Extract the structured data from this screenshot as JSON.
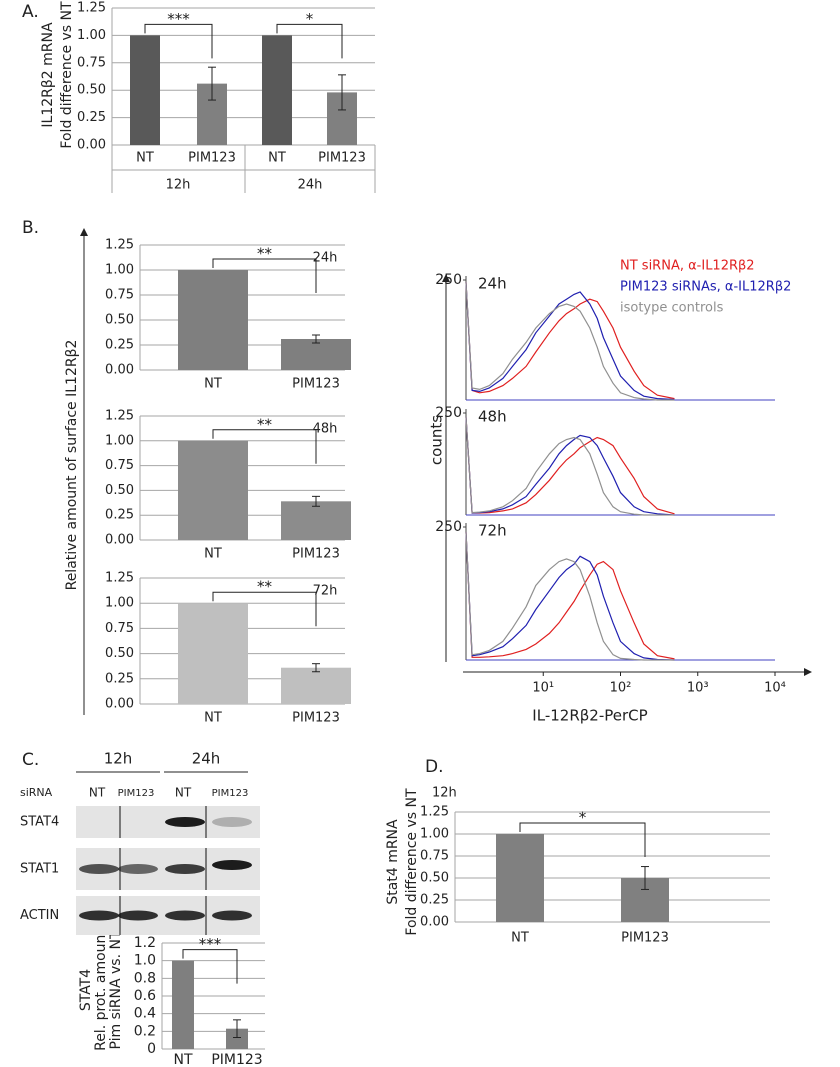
{
  "panel_labels": [
    "A.",
    "B.",
    "C.",
    "D."
  ],
  "blot": {
    "timepoints": [
      "12h",
      "24h"
    ],
    "row_label": "siRNA",
    "lanes": [
      "NT",
      "PIM123",
      "NT",
      "PIM123"
    ],
    "proteins": [
      "STAT4",
      "STAT1",
      "ACTIN"
    ]
  },
  "chart_data": [
    {
      "type": "bar",
      "ylabel": [
        "IL12Rβ2 mRNA",
        "Fold difference vs NT"
      ],
      "categories": [
        "NT",
        "PIM123",
        "NT",
        "PIM123"
      ],
      "groups": [
        "12h",
        "24h"
      ],
      "values": [
        1.0,
        0.56,
        1.0,
        0.48
      ],
      "errors": [
        null,
        0.15,
        null,
        0.16
      ],
      "colors": [
        "#595959",
        "#808080",
        "#595959",
        "#808080"
      ],
      "ylim": [
        0,
        1.25
      ],
      "yticks": [
        {
          "value": 0,
          "label": "0.00"
        },
        {
          "value": 0.25,
          "label": "0.25"
        },
        {
          "value": 0.5,
          "label": "0.50"
        },
        {
          "value": 0.75,
          "label": "0.75"
        },
        {
          "value": 1,
          "label": "1.00"
        },
        {
          "value": 1.25,
          "label": "1.25"
        }
      ],
      "grid": true,
      "significance": [
        "***",
        "*"
      ]
    },
    {
      "type": "bar",
      "title": "24h",
      "ylabel": [
        "Relative amount of surface IL12Rβ2"
      ],
      "categories": [
        "NT",
        "PIM123"
      ],
      "values": [
        1.0,
        0.31
      ],
      "errors": [
        null,
        0.04
      ],
      "colors": [
        "#7f7f7f",
        "#7f7f7f"
      ],
      "ylim": [
        0,
        1.25
      ],
      "yticks": [
        {
          "value": 0,
          "label": "0.00"
        },
        {
          "value": 0.25,
          "label": "0.25"
        },
        {
          "value": 0.5,
          "label": "0.50"
        },
        {
          "value": 0.75,
          "label": "0.75"
        },
        {
          "value": 1,
          "label": "1.00"
        },
        {
          "value": 1.25,
          "label": "1.25"
        }
      ],
      "grid": true,
      "significance": [
        "**"
      ]
    },
    {
      "type": "bar",
      "title": "48h",
      "categories": [
        "NT",
        "PIM123"
      ],
      "values": [
        1.0,
        0.39
      ],
      "errors": [
        null,
        0.05
      ],
      "colors": [
        "#8c8c8c",
        "#8c8c8c"
      ],
      "ylim": [
        0,
        1.25
      ],
      "yticks": [
        {
          "value": 0,
          "label": "0.00"
        },
        {
          "value": 0.25,
          "label": "0.25"
        },
        {
          "value": 0.5,
          "label": "0.50"
        },
        {
          "value": 0.75,
          "label": "0.75"
        },
        {
          "value": 1,
          "label": "1.00"
        },
        {
          "value": 1.25,
          "label": "1.25"
        }
      ],
      "grid": true,
      "significance": [
        "**"
      ]
    },
    {
      "type": "bar",
      "title": "72h",
      "categories": [
        "NT",
        "PIM123"
      ],
      "values": [
        1.0,
        0.36
      ],
      "errors": [
        null,
        0.04
      ],
      "colors": [
        "#bfbfbf",
        "#bfbfbf"
      ],
      "ylim": [
        0,
        1.25
      ],
      "yticks": [
        {
          "value": 0,
          "label": "0.00"
        },
        {
          "value": 0.25,
          "label": "0.25"
        },
        {
          "value": 0.5,
          "label": "0.50"
        },
        {
          "value": 0.75,
          "label": "0.75"
        },
        {
          "value": 1,
          "label": "1.00"
        },
        {
          "value": 1.25,
          "label": "1.25"
        }
      ],
      "grid": true,
      "significance": [
        "**"
      ]
    },
    {
      "type": "line",
      "title": "24h",
      "log_x": true,
      "x": [
        1,
        1.2,
        1.5,
        2,
        3,
        4,
        6,
        8,
        12,
        16,
        20,
        25,
        30,
        40,
        50,
        60,
        80,
        100,
        150,
        200,
        300,
        500
      ],
      "xlim": [
        1,
        10000
      ],
      "ylim": [
        0,
        250
      ],
      "yticks": [
        250
      ],
      "series": [
        {
          "name": "NT siRNA, α-IL12Rβ2",
          "color": "#e02020",
          "values": [
            245,
            20,
            15,
            18,
            30,
            45,
            70,
            100,
            140,
            165,
            180,
            190,
            200,
            210,
            205,
            185,
            150,
            110,
            60,
            30,
            10,
            3
          ]
        },
        {
          "name": "PIM123 siRNAs, α-IL12Rβ2",
          "color": "#2020b0",
          "values": [
            245,
            20,
            18,
            25,
            45,
            70,
            105,
            140,
            175,
            200,
            210,
            220,
            225,
            200,
            170,
            130,
            85,
            50,
            20,
            8,
            3,
            1
          ]
        },
        {
          "name": "isotype controls",
          "color": "#909090",
          "values": [
            245,
            25,
            22,
            30,
            55,
            85,
            120,
            150,
            180,
            195,
            200,
            195,
            185,
            150,
            110,
            70,
            35,
            15,
            5,
            2,
            0,
            0
          ]
        }
      ]
    },
    {
      "type": "line",
      "title": "48h",
      "ylabel": "counts",
      "log_x": true,
      "x": [
        1,
        1.2,
        1.5,
        2,
        3,
        4,
        6,
        8,
        12,
        16,
        20,
        25,
        30,
        40,
        50,
        60,
        80,
        100,
        150,
        200,
        300,
        500
      ],
      "xlim": [
        1,
        10000
      ],
      "ylim": [
        0,
        250
      ],
      "yticks": [
        250
      ],
      "series": [
        {
          "color": "#e02020",
          "values": [
            240,
            5,
            5,
            6,
            10,
            15,
            30,
            50,
            85,
            115,
            135,
            150,
            165,
            180,
            190,
            185,
            170,
            140,
            90,
            45,
            15,
            3
          ]
        },
        {
          "color": "#2020b0",
          "values": [
            240,
            5,
            6,
            8,
            15,
            25,
            45,
            75,
            115,
            150,
            170,
            185,
            195,
            190,
            170,
            140,
            95,
            55,
            20,
            8,
            3,
            0
          ]
        },
        {
          "color": "#909090",
          "values": [
            240,
            6,
            7,
            10,
            20,
            35,
            65,
            105,
            150,
            175,
            185,
            190,
            185,
            150,
            100,
            55,
            20,
            8,
            2,
            0,
            0,
            0
          ]
        }
      ]
    },
    {
      "type": "line",
      "title": "72h",
      "xlabel": "IL-12Rβ2-PerCP",
      "log_x": true,
      "x": [
        1,
        1.2,
        1.5,
        2,
        3,
        4,
        6,
        8,
        12,
        16,
        20,
        25,
        30,
        40,
        50,
        60,
        80,
        100,
        150,
        200,
        300,
        500
      ],
      "xlim": [
        1,
        10000
      ],
      "xticks": [
        {
          "value": 10,
          "label": "10¹"
        },
        {
          "value": 100,
          "label": "10²"
        },
        {
          "value": 1000,
          "label": "10³"
        },
        {
          "value": 10000,
          "label": "10⁴"
        }
      ],
      "ylim": [
        0,
        250
      ],
      "yticks": [
        250
      ],
      "series": [
        {
          "color": "#e02020",
          "values": [
            240,
            5,
            5,
            6,
            8,
            12,
            20,
            30,
            50,
            70,
            90,
            110,
            130,
            160,
            180,
            185,
            170,
            130,
            70,
            30,
            8,
            2
          ]
        },
        {
          "color": "#2020b0",
          "values": [
            240,
            8,
            10,
            15,
            25,
            40,
            65,
            95,
            130,
            155,
            170,
            180,
            195,
            185,
            160,
            120,
            70,
            35,
            12,
            4,
            1,
            0
          ]
        },
        {
          "color": "#909090",
          "values": [
            240,
            10,
            12,
            18,
            35,
            60,
            100,
            140,
            170,
            185,
            190,
            185,
            170,
            120,
            70,
            35,
            10,
            3,
            1,
            0,
            0,
            0
          ]
        }
      ]
    },
    {
      "type": "bar",
      "ylabel": [
        "STAT4",
        "Rel. prot. amount",
        "Pim siRNA vs. NT"
      ],
      "categories": [
        "NT",
        "PIM123"
      ],
      "values": [
        1.0,
        0.23
      ],
      "errors": [
        null,
        0.1
      ],
      "colors": [
        "#7f7f7f",
        "#7f7f7f"
      ],
      "ylim": [
        0,
        1.2
      ],
      "yticks": [
        0,
        0.2,
        0.4,
        0.6,
        0.8,
        {
          "value": 1,
          "label": "1.0"
        },
        1.2
      ],
      "grid": true,
      "significance": [
        "***"
      ]
    },
    {
      "type": "bar",
      "title": "12h",
      "ylabel": [
        "Stat4 mRNA",
        "Fold difference vs NT"
      ],
      "categories": [
        "NT",
        "PIM123"
      ],
      "values": [
        1.0,
        0.5
      ],
      "errors": [
        null,
        0.13
      ],
      "colors": [
        "#808080",
        "#808080"
      ],
      "ylim": [
        0,
        1.25
      ],
      "yticks": [
        {
          "value": 0,
          "label": "0.00"
        },
        {
          "value": 0.25,
          "label": "0.25"
        },
        {
          "value": 0.5,
          "label": "0.50"
        },
        {
          "value": 0.75,
          "label": "0.75"
        },
        {
          "value": 1,
          "label": "1.00"
        },
        {
          "value": 1.25,
          "label": "1.25"
        }
      ],
      "grid": true,
      "significance": [
        "*"
      ]
    }
  ]
}
